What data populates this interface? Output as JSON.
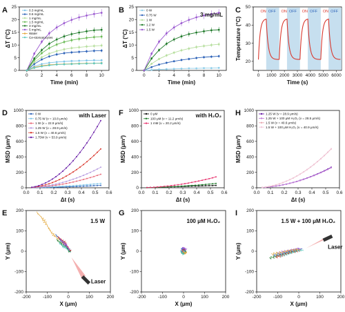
{
  "chart_data": [
    {
      "panel": "A",
      "type": "line",
      "xlabel": "Time (min)",
      "ylabel": "ΔT (°C)",
      "xlim": [
        -1,
        11
      ],
      "ylim": [
        0,
        25
      ],
      "xticks": [
        "0",
        "2",
        "4",
        "6",
        "8",
        "10"
      ],
      "yticks": [
        "0",
        "5",
        "10",
        "15",
        "20",
        "25"
      ],
      "x": [
        0,
        1,
        2,
        3,
        4,
        5,
        6,
        7,
        8,
        9,
        10
      ],
      "legend_position": "top-left",
      "series": [
        {
          "name": "0.3 mg/mL",
          "color": "#7fc4e8",
          "values": [
            0,
            1.6,
            2.5,
            3.0,
            3.3,
            3.5,
            3.7,
            3.8,
            3.9,
            4.0,
            4.0
          ]
        },
        {
          "name": "0.6 mg/mL",
          "color": "#2e63b8",
          "values": [
            0,
            2.5,
            4.3,
            5.5,
            6.3,
            6.8,
            7.1,
            7.3,
            7.5,
            7.7,
            7.8
          ]
        },
        {
          "name": "1 mg/mL",
          "color": "#b6de9d",
          "values": [
            0,
            3.2,
            5.2,
            6.6,
            7.6,
            8.3,
            8.8,
            9.1,
            9.4,
            9.6,
            9.8
          ]
        },
        {
          "name": "1.5 mg/mL",
          "color": "#69ba55",
          "values": [
            0,
            4.0,
            6.8,
            8.8,
            10.2,
            11.2,
            11.9,
            12.4,
            12.8,
            13.1,
            13.3
          ]
        },
        {
          "name": "3 mg/mL",
          "color": "#1f7a2a",
          "values": [
            0,
            4.7,
            8.0,
            10.5,
            12.2,
            13.4,
            14.3,
            14.9,
            15.4,
            15.8,
            16.0
          ]
        },
        {
          "name": "5 mg/mL",
          "color": "#9b59d0",
          "values": [
            0,
            6.6,
            11.3,
            14.6,
            16.9,
            18.6,
            19.9,
            20.9,
            21.6,
            22.2,
            22.7
          ]
        },
        {
          "name": "Water",
          "color": "#e3a83b",
          "values": [
            0,
            1.2,
            1.8,
            2.2,
            2.4,
            2.5,
            2.6,
            2.7,
            2.8,
            2.8,
            2.9
          ]
        },
        {
          "name": "Ce-stomatocytes",
          "color": "#5fc9c0",
          "values": [
            0,
            1.0,
            1.6,
            2.0,
            2.3,
            2.4,
            2.5,
            2.6,
            2.7,
            2.8,
            2.8
          ]
        }
      ]
    },
    {
      "panel": "B",
      "type": "line",
      "xlabel": "Time (min)",
      "ylabel": "ΔT (°C)",
      "annotation": "3 mg/mL",
      "xlim": [
        -1,
        11
      ],
      "ylim": [
        0,
        25
      ],
      "xticks": [
        "0",
        "2",
        "4",
        "6",
        "8",
        "10"
      ],
      "yticks": [
        "0",
        "5",
        "10",
        "15",
        "20",
        "25"
      ],
      "x": [
        0,
        1,
        2,
        3,
        4,
        5,
        6,
        7,
        8,
        9,
        10
      ],
      "legend_position": "top-left",
      "series": [
        {
          "name": "0 W",
          "color": "#8fcde8",
          "values": [
            0,
            0.2,
            0.4,
            0.5,
            0.6,
            0.7,
            0.8,
            0.8,
            0.9,
            0.9,
            1.0
          ]
        },
        {
          "name": "0.75 W",
          "color": "#2e63b8",
          "values": [
            0,
            1.3,
            2.3,
            3.0,
            3.6,
            4.1,
            4.5,
            4.9,
            5.2,
            5.4,
            5.6
          ]
        },
        {
          "name": "1 W",
          "color": "#b6de9d",
          "values": [
            0,
            2.6,
            4.5,
            5.9,
            7.0,
            7.9,
            8.6,
            9.2,
            9.6,
            10.0,
            10.3
          ]
        },
        {
          "name": "1.2 W",
          "color": "#1f7a2a",
          "values": [
            0,
            4.7,
            8.0,
            10.5,
            12.2,
            13.4,
            14.3,
            14.9,
            15.4,
            15.8,
            16.0
          ]
        },
        {
          "name": "1.5 W",
          "color": "#9b59d0",
          "values": [
            0,
            6.6,
            11.3,
            14.6,
            16.9,
            18.6,
            19.9,
            20.9,
            21.6,
            22.2,
            22.7
          ]
        }
      ]
    },
    {
      "panel": "C",
      "type": "line",
      "xlabel": "Time (s)",
      "ylabel": "Temperature (°C)",
      "xlim": [
        -400,
        6400
      ],
      "ylim": [
        15,
        50
      ],
      "xticks": [
        "0",
        "1000",
        "2000",
        "3000",
        "4000",
        "5000",
        "6000"
      ],
      "yticks": [
        "20",
        "30",
        "40",
        "50"
      ],
      "cycle_labels": {
        "on": "ON",
        "off": "OFF"
      },
      "cycles": [
        {
          "on_start": 0,
          "off_start": 600,
          "end": 1600
        },
        {
          "on_start": 1600,
          "off_start": 2200,
          "end": 3200
        },
        {
          "on_start": 3200,
          "off_start": 3800,
          "end": 4800
        },
        {
          "on_start": 4800,
          "off_start": 5400,
          "end": 6400
        }
      ],
      "series": [
        {
          "color": "#d9382e",
          "baseline": 21,
          "peak": 43.5
        }
      ]
    },
    {
      "panel": "D",
      "type": "line",
      "annotation": "with Laser",
      "xlabel": "Δt (s)",
      "ylabel": "MSD (μm²)",
      "xlim": [
        0,
        0.6
      ],
      "ylim": [
        0,
        1000
      ],
      "xticks": [
        "0.0",
        "0.1",
        "0.2",
        "0.3",
        "0.4",
        "0.5",
        "0.6"
      ],
      "yticks": [
        "0",
        "200",
        "400",
        "600",
        "800",
        "1000"
      ],
      "legend_position": "top-left",
      "series": [
        {
          "name": "0 W",
          "color": "#2e63b8",
          "coef": 80,
          "lin": 15
        },
        {
          "name": "0.75 W (v = 10.8 μm/s)",
          "color": "#7fc4e8",
          "coef": 117,
          "lin": 40
        },
        {
          "name": "1 W (v = 22.9 μm/s)",
          "color": "#e86a7a",
          "coef": 524,
          "lin": 40
        },
        {
          "name": "1.25 W (v = 28.9 μm/s)",
          "color": "#b69ae0",
          "coef": 835,
          "lin": 40
        },
        {
          "name": "1.5 W (v = 40.6 μm/s)",
          "color": "#d9382e",
          "coef": 1650,
          "lin": 40
        },
        {
          "name": "1.75W (v = 53.9 μm/s)",
          "color": "#6a1fa8",
          "coef": 2905,
          "lin": 40
        }
      ]
    },
    {
      "panel": "F",
      "type": "line",
      "annotation": "with H₂O₂",
      "xlabel": "Δt (s)",
      "ylabel": "MSD (μm²)",
      "xlim": [
        0,
        0.6
      ],
      "ylim": [
        0,
        1000
      ],
      "xticks": [
        "0.0",
        "0.1",
        "0.2",
        "0.3",
        "0.4",
        "0.5",
        "0.6"
      ],
      "yticks": [
        "0",
        "200",
        "400",
        "600",
        "800",
        "1000"
      ],
      "legend_position": "top-left",
      "series": [
        {
          "name": "0 μM",
          "color": "#111111",
          "coef": 0,
          "lin": 55
        },
        {
          "name": "100 μM (v = 11.2 μm/s)",
          "color": "#1f7a2a",
          "coef": 125,
          "lin": 35
        },
        {
          "name": "1 mM (v = 20.2 μm/s)",
          "color": "#e8336e",
          "coef": 408,
          "lin": 40
        }
      ]
    },
    {
      "panel": "H",
      "type": "line",
      "xlabel": "Δt (s)",
      "ylabel": "MSD (μm²)",
      "xlim": [
        0,
        0.6
      ],
      "ylim": [
        0,
        1000
      ],
      "xticks": [
        "0.0",
        "0.1",
        "0.2",
        "0.3",
        "0.4",
        "0.5",
        "0.6"
      ],
      "yticks": [
        "0",
        "200",
        "400",
        "600",
        "800",
        "1000"
      ],
      "legend_position": "top-left",
      "series": [
        {
          "name": "1.25 W (v = 28.9 μm/s)",
          "color": "#6a1fa8",
          "coef": 835,
          "lin": 40
        },
        {
          "name": "1.25 W + 100 μM H₂O₂ (v = 28.5 μm/s)",
          "color": "#c07ad8",
          "coef": 812,
          "lin": 40
        },
        {
          "name": "1.5 W (v = 40.6 μm/s)",
          "color": "#e8a7b0",
          "coef": 1650,
          "lin": 40
        },
        {
          "name": "1.5 W + 100 μM H₂O₂ (v = 40.9 μm/s)",
          "color": "#f0c6d8",
          "coef": 1660,
          "lin": 40
        }
      ]
    },
    {
      "panel": "E",
      "type": "scatter",
      "annotation": "1.5 W",
      "laser_label": "Laser",
      "xlabel": "X (μm)",
      "ylabel": "Y (μm)",
      "xlim": [
        -200,
        200
      ],
      "ylim": [
        -200,
        200
      ],
      "xticks": [
        "-200",
        "-100",
        "0",
        "100",
        "200"
      ],
      "yticks": [
        "-200",
        "-100",
        "0",
        "100",
        "200"
      ],
      "trajectories": [
        {
          "color": "#e3a83b",
          "points": [
            [
              -150,
              190
            ],
            [
              -130,
              170
            ],
            [
              -115,
              150
            ],
            [
              -100,
              125
            ],
            [
              -85,
              100
            ],
            [
              -70,
              80
            ],
            [
              -55,
              65
            ],
            [
              -40,
              55
            ],
            [
              -25,
              40
            ],
            [
              -10,
              25
            ],
            [
              0,
              10
            ]
          ]
        },
        {
          "color": "#2e63b8",
          "points": [
            [
              -60,
              80
            ],
            [
              -45,
              65
            ],
            [
              -30,
              50
            ],
            [
              -15,
              35
            ],
            [
              -5,
              20
            ],
            [
              5,
              5
            ],
            [
              10,
              -5
            ]
          ]
        },
        {
          "color": "#1f7a2a",
          "points": [
            [
              -55,
              55
            ],
            [
              -40,
              45
            ],
            [
              -25,
              30
            ],
            [
              -10,
              20
            ],
            [
              0,
              5
            ],
            [
              8,
              -5
            ]
          ]
        },
        {
          "color": "#d9382e",
          "points": [
            [
              -50,
              70
            ],
            [
              -35,
              60
            ],
            [
              -20,
              45
            ],
            [
              -8,
              30
            ],
            [
              2,
              15
            ],
            [
              10,
              0
            ]
          ]
        },
        {
          "color": "#9b59d0",
          "points": [
            [
              -40,
              60
            ],
            [
              -28,
              48
            ],
            [
              -15,
              35
            ],
            [
              -5,
              22
            ],
            [
              5,
              8
            ]
          ]
        },
        {
          "color": "#5fc9c0",
          "points": [
            [
              -45,
              40
            ],
            [
              -32,
              32
            ],
            [
              -20,
              22
            ],
            [
              -8,
              12
            ],
            [
              4,
              2
            ]
          ]
        }
      ]
    },
    {
      "panel": "G",
      "type": "scatter",
      "annotation": "100 μM H₂O₂",
      "xlabel": "X (μm)",
      "ylabel": "Y (μm)",
      "xlim": [
        -200,
        200
      ],
      "ylim": [
        -200,
        200
      ],
      "xticks": [
        "-200",
        "-100",
        "0",
        "100",
        "200"
      ],
      "yticks": [
        "-200",
        "-100",
        "0",
        "100",
        "200"
      ],
      "trajectories": [
        {
          "color": "#2e63b8",
          "points": [
            [
              -10,
              5
            ],
            [
              -2,
              12
            ],
            [
              6,
              4
            ],
            [
              2,
              -6
            ],
            [
              -8,
              -2
            ],
            [
              -4,
              8
            ]
          ]
        },
        {
          "color": "#d9382e",
          "points": [
            [
              0,
              -8
            ],
            [
              8,
              -2
            ],
            [
              4,
              10
            ],
            [
              -6,
              6
            ],
            [
              -2,
              -4
            ]
          ]
        },
        {
          "color": "#1f7a2a",
          "points": [
            [
              -12,
              -6
            ],
            [
              -4,
              -12
            ],
            [
              6,
              -8
            ],
            [
              10,
              2
            ],
            [
              0,
              6
            ]
          ]
        },
        {
          "color": "#9b59d0",
          "points": [
            [
              -6,
              14
            ],
            [
              4,
              16
            ],
            [
              12,
              8
            ],
            [
              2,
              0
            ],
            [
              -10,
              10
            ]
          ]
        },
        {
          "color": "#5fc9c0",
          "points": [
            [
              -14,
              2
            ],
            [
              -8,
              -8
            ],
            [
              2,
              -14
            ],
            [
              8,
              -4
            ],
            [
              -2,
              4
            ]
          ]
        },
        {
          "color": "#e3a83b",
          "points": [
            [
              -4,
              -2
            ],
            [
              4,
              -6
            ],
            [
              10,
              -12
            ],
            [
              14,
              -4
            ]
          ]
        }
      ]
    },
    {
      "panel": "I",
      "type": "scatter",
      "annotation": "1.5 W + 100 μM H₂O₂",
      "laser_label": "Laser",
      "xlabel": "X (μm)",
      "ylabel": "Y (μm)",
      "xlim": [
        -200,
        200
      ],
      "ylim": [
        -200,
        200
      ],
      "xticks": [
        "-200",
        "-100",
        "0",
        "100",
        "200"
      ],
      "yticks": [
        "-200",
        "-100",
        "0",
        "100",
        "200"
      ],
      "trajectories": [
        {
          "color": "#1f7a2a",
          "points": [
            [
              -140,
              -35
            ],
            [
              -110,
              -25
            ],
            [
              -80,
              -15
            ],
            [
              -50,
              -8
            ],
            [
              -20,
              0
            ],
            [
              0,
              5
            ]
          ]
        },
        {
          "color": "#2e63b8",
          "points": [
            [
              -120,
              -20
            ],
            [
              -90,
              -12
            ],
            [
              -60,
              -5
            ],
            [
              -30,
              2
            ],
            [
              0,
              8
            ],
            [
              15,
              12
            ]
          ]
        },
        {
          "color": "#d9382e",
          "points": [
            [
              -110,
              -30
            ],
            [
              -80,
              -20
            ],
            [
              -50,
              -10
            ],
            [
              -20,
              -3
            ],
            [
              5,
              5
            ]
          ]
        },
        {
          "color": "#9b59d0",
          "points": [
            [
              -100,
              -10
            ],
            [
              -70,
              -2
            ],
            [
              -40,
              5
            ],
            [
              -10,
              10
            ],
            [
              10,
              14
            ]
          ]
        },
        {
          "color": "#5fc9c0",
          "points": [
            [
              -90,
              -25
            ],
            [
              -60,
              -15
            ],
            [
              -30,
              -6
            ],
            [
              0,
              2
            ],
            [
              20,
              8
            ]
          ]
        },
        {
          "color": "#e3a83b",
          "points": [
            [
              -130,
              -15
            ],
            [
              -95,
              -8
            ],
            [
              -60,
              0
            ],
            [
              -25,
              6
            ],
            [
              5,
              10
            ]
          ]
        }
      ]
    }
  ]
}
